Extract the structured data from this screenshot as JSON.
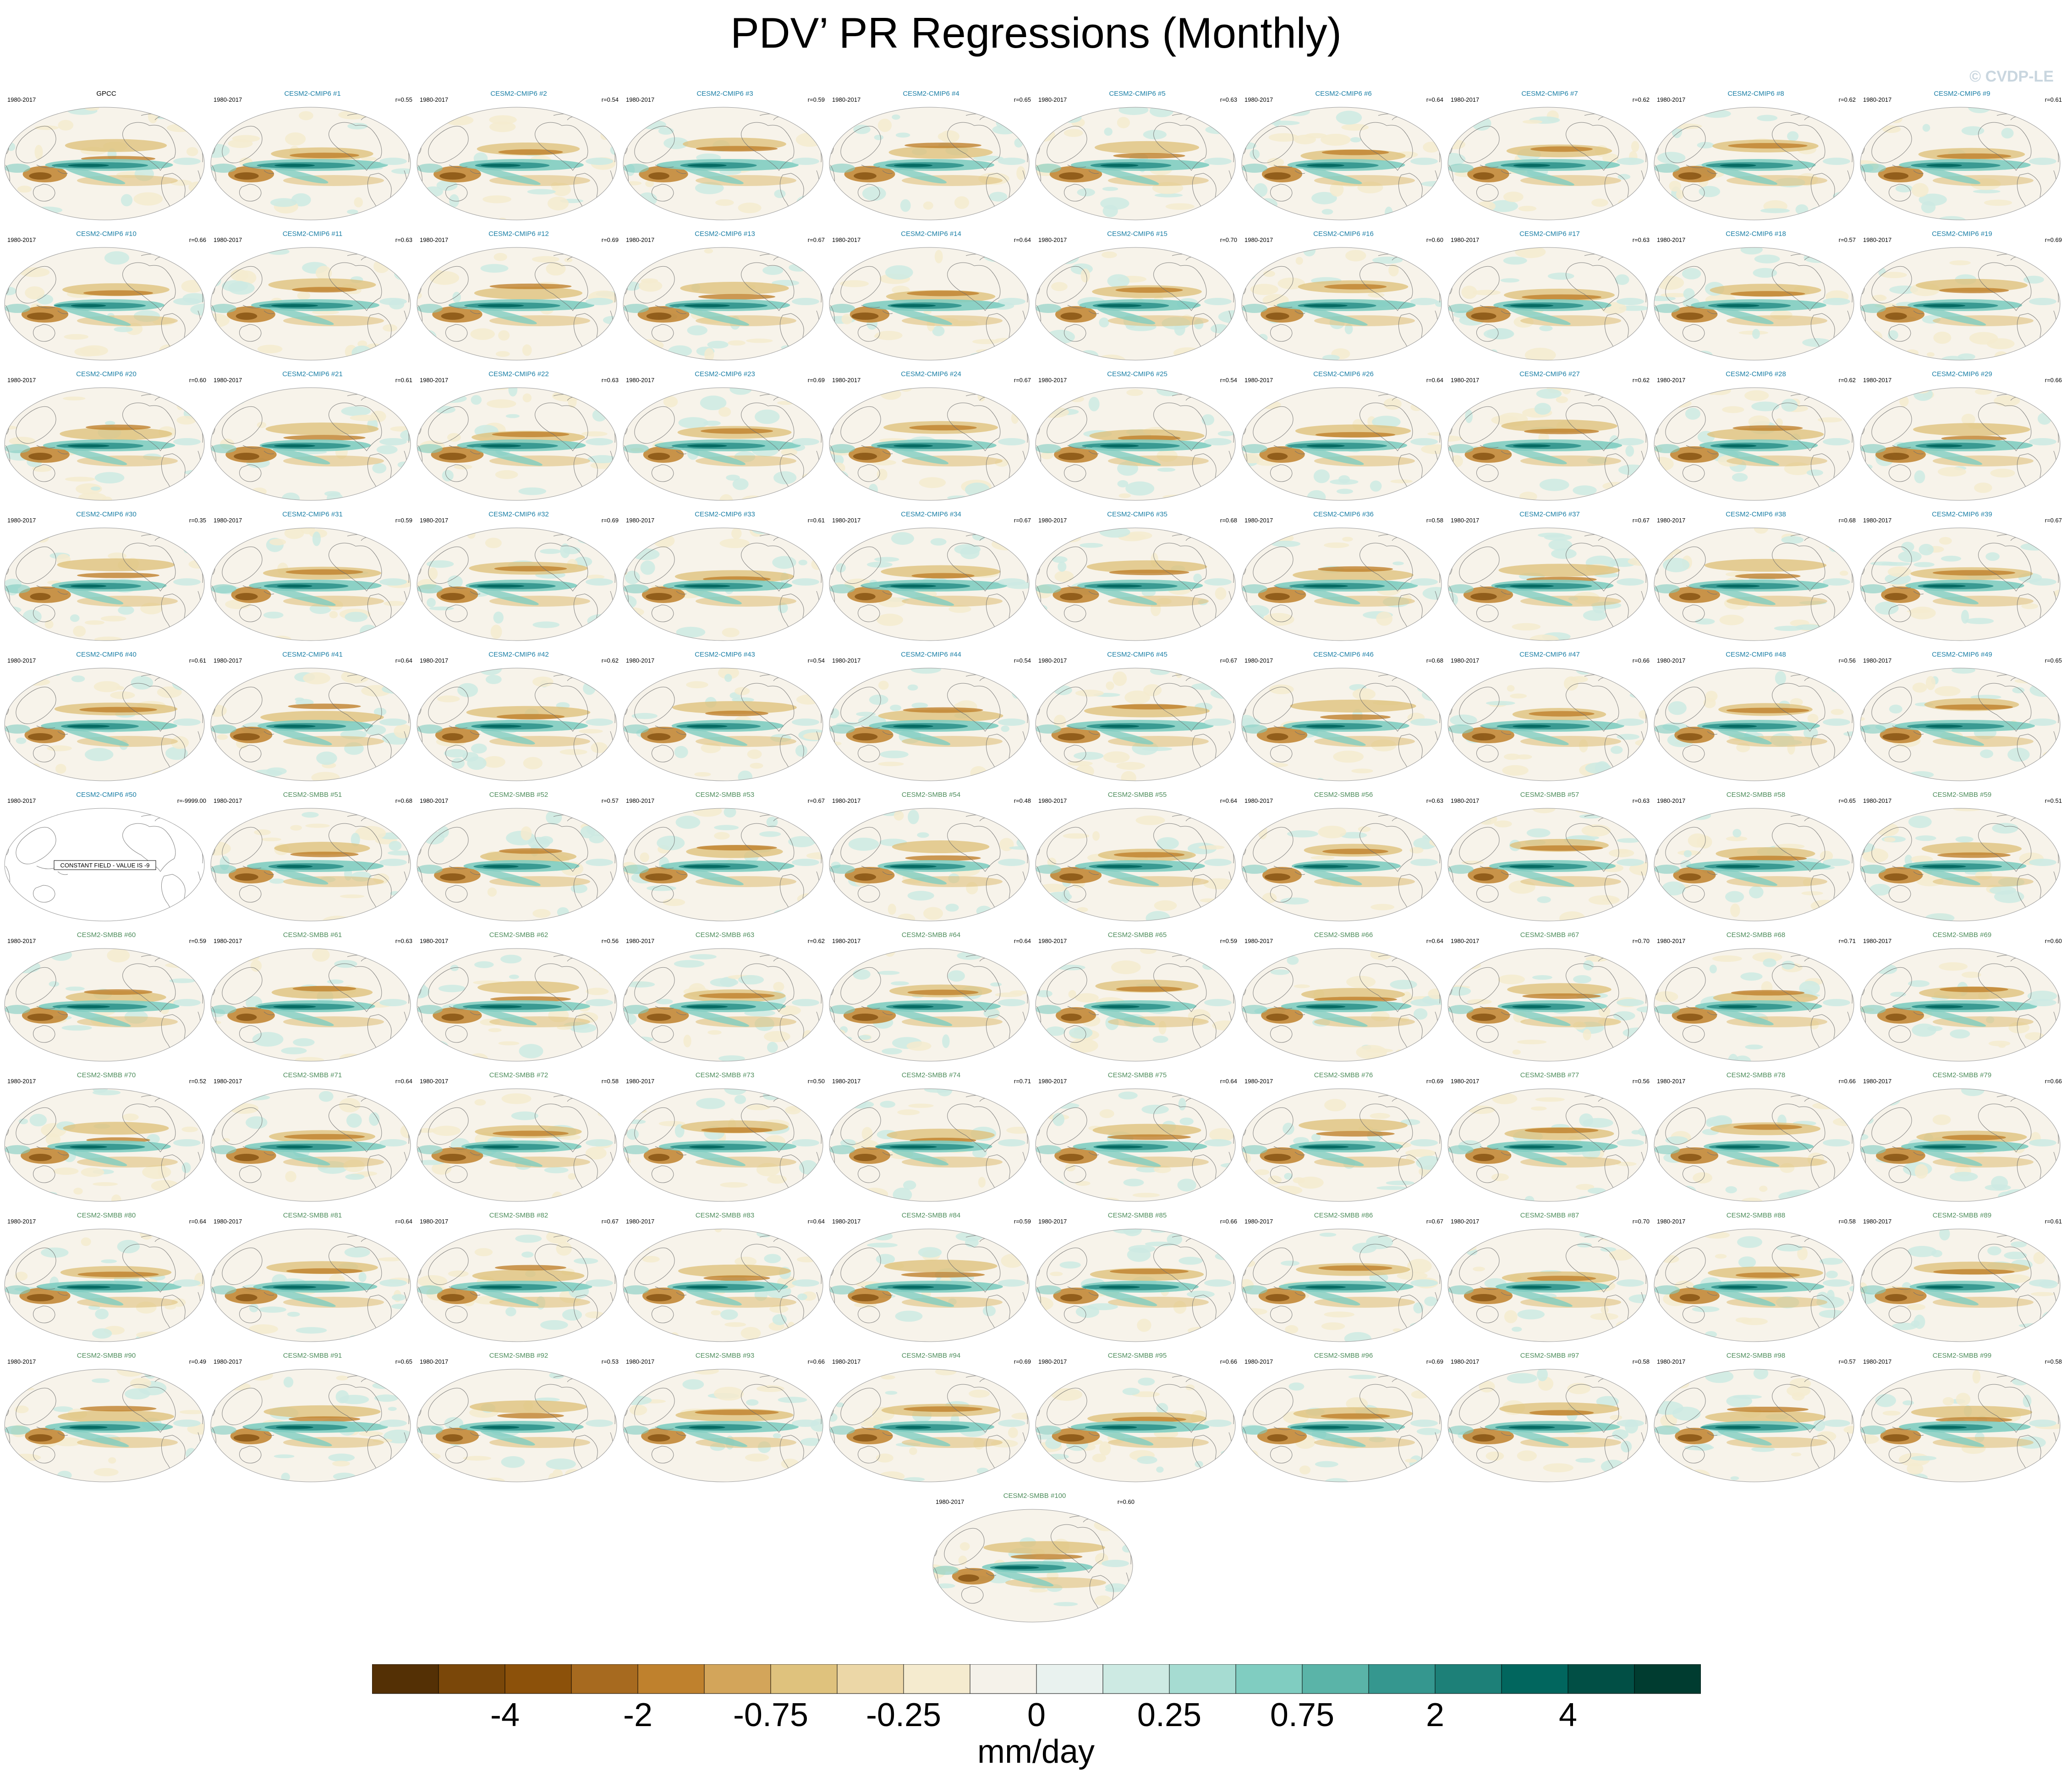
{
  "title": "PDV’ PR Regressions (Monthly)",
  "copyright": "© CVDP-LE",
  "period": "1980-2017",
  "constant_field_text": "CONSTANT FIELD - VALUE IS -9",
  "panels": [
    {
      "name": "GPCC",
      "r": "",
      "group": "obs"
    },
    {
      "name": "CESM2-CMIP6 #1",
      "r": "r=0.55",
      "group": "cmip6"
    },
    {
      "name": "CESM2-CMIP6 #2",
      "r": "r=0.54",
      "group": "cmip6"
    },
    {
      "name": "CESM2-CMIP6 #3",
      "r": "r=0.59",
      "group": "cmip6"
    },
    {
      "name": "CESM2-CMIP6 #4",
      "r": "r=0.65",
      "group": "cmip6"
    },
    {
      "name": "CESM2-CMIP6 #5",
      "r": "r=0.63",
      "group": "cmip6"
    },
    {
      "name": "CESM2-CMIP6 #6",
      "r": "r=0.64",
      "group": "cmip6"
    },
    {
      "name": "CESM2-CMIP6 #7",
      "r": "r=0.62",
      "group": "cmip6"
    },
    {
      "name": "CESM2-CMIP6 #8",
      "r": "r=0.62",
      "group": "cmip6"
    },
    {
      "name": "CESM2-CMIP6 #9",
      "r": "r=0.61",
      "group": "cmip6"
    },
    {
      "name": "CESM2-CMIP6 #10",
      "r": "r=0.66",
      "group": "cmip6"
    },
    {
      "name": "CESM2-CMIP6 #11",
      "r": "r=0.63",
      "group": "cmip6"
    },
    {
      "name": "CESM2-CMIP6 #12",
      "r": "r=0.69",
      "group": "cmip6"
    },
    {
      "name": "CESM2-CMIP6 #13",
      "r": "r=0.67",
      "group": "cmip6"
    },
    {
      "name": "CESM2-CMIP6 #14",
      "r": "r=0.64",
      "group": "cmip6"
    },
    {
      "name": "CESM2-CMIP6 #15",
      "r": "r=0.70",
      "group": "cmip6"
    },
    {
      "name": "CESM2-CMIP6 #16",
      "r": "r=0.60",
      "group": "cmip6"
    },
    {
      "name": "CESM2-CMIP6 #17",
      "r": "r=0.63",
      "group": "cmip6"
    },
    {
      "name": "CESM2-CMIP6 #18",
      "r": "r=0.57",
      "group": "cmip6"
    },
    {
      "name": "CESM2-CMIP6 #19",
      "r": "r=0.69",
      "group": "cmip6"
    },
    {
      "name": "CESM2-CMIP6 #20",
      "r": "r=0.60",
      "group": "cmip6"
    },
    {
      "name": "CESM2-CMIP6 #21",
      "r": "r=0.61",
      "group": "cmip6"
    },
    {
      "name": "CESM2-CMIP6 #22",
      "r": "r=0.63",
      "group": "cmip6"
    },
    {
      "name": "CESM2-CMIP6 #23",
      "r": "r=0.69",
      "group": "cmip6"
    },
    {
      "name": "CESM2-CMIP6 #24",
      "r": "r=0.67",
      "group": "cmip6"
    },
    {
      "name": "CESM2-CMIP6 #25",
      "r": "r=0.54",
      "group": "cmip6"
    },
    {
      "name": "CESM2-CMIP6 #26",
      "r": "r=0.64",
      "group": "cmip6"
    },
    {
      "name": "CESM2-CMIP6 #27",
      "r": "r=0.62",
      "group": "cmip6"
    },
    {
      "name": "CESM2-CMIP6 #28",
      "r": "r=0.62",
      "group": "cmip6"
    },
    {
      "name": "CESM2-CMIP6 #29",
      "r": "r=0.66",
      "group": "cmip6"
    },
    {
      "name": "CESM2-CMIP6 #30",
      "r": "r=0.35",
      "group": "cmip6"
    },
    {
      "name": "CESM2-CMIP6 #31",
      "r": "r=0.59",
      "group": "cmip6"
    },
    {
      "name": "CESM2-CMIP6 #32",
      "r": "r=0.69",
      "group": "cmip6"
    },
    {
      "name": "CESM2-CMIP6 #33",
      "r": "r=0.61",
      "group": "cmip6"
    },
    {
      "name": "CESM2-CMIP6 #34",
      "r": "r=0.67",
      "group": "cmip6"
    },
    {
      "name": "CESM2-CMIP6 #35",
      "r": "r=0.68",
      "group": "cmip6"
    },
    {
      "name": "CESM2-CMIP6 #36",
      "r": "r=0.58",
      "group": "cmip6"
    },
    {
      "name": "CESM2-CMIP6 #37",
      "r": "r=0.67",
      "group": "cmip6"
    },
    {
      "name": "CESM2-CMIP6 #38",
      "r": "r=0.68",
      "group": "cmip6"
    },
    {
      "name": "CESM2-CMIP6 #39",
      "r": "r=0.67",
      "group": "cmip6"
    },
    {
      "name": "CESM2-CMIP6 #40",
      "r": "r=0.61",
      "group": "cmip6"
    },
    {
      "name": "CESM2-CMIP6 #41",
      "r": "r=0.64",
      "group": "cmip6"
    },
    {
      "name": "CESM2-CMIP6 #42",
      "r": "r=0.62",
      "group": "cmip6"
    },
    {
      "name": "CESM2-CMIP6 #43",
      "r": "r=0.54",
      "group": "cmip6"
    },
    {
      "name": "CESM2-CMIP6 #44",
      "r": "r=0.54",
      "group": "cmip6"
    },
    {
      "name": "CESM2-CMIP6 #45",
      "r": "r=0.67",
      "group": "cmip6"
    },
    {
      "name": "CESM2-CMIP6 #46",
      "r": "r=0.68",
      "group": "cmip6"
    },
    {
      "name": "CESM2-CMIP6 #47",
      "r": "r=0.66",
      "group": "cmip6"
    },
    {
      "name": "CESM2-CMIP6 #48",
      "r": "r=0.56",
      "group": "cmip6"
    },
    {
      "name": "CESM2-CMIP6 #49",
      "r": "r=0.65",
      "group": "cmip6"
    },
    {
      "name": "CESM2-CMIP6 #50",
      "r": "r=-9999.00",
      "group": "cmip6",
      "constant": true
    },
    {
      "name": "CESM2-SMBB #51",
      "r": "r=0.68",
      "group": "smbb"
    },
    {
      "name": "CESM2-SMBB #52",
      "r": "r=0.57",
      "group": "smbb"
    },
    {
      "name": "CESM2-SMBB #53",
      "r": "r=0.67",
      "group": "smbb"
    },
    {
      "name": "CESM2-SMBB #54",
      "r": "r=0.48",
      "group": "smbb"
    },
    {
      "name": "CESM2-SMBB #55",
      "r": "r=0.64",
      "group": "smbb"
    },
    {
      "name": "CESM2-SMBB #56",
      "r": "r=0.63",
      "group": "smbb"
    },
    {
      "name": "CESM2-SMBB #57",
      "r": "r=0.63",
      "group": "smbb"
    },
    {
      "name": "CESM2-SMBB #58",
      "r": "r=0.65",
      "group": "smbb"
    },
    {
      "name": "CESM2-SMBB #59",
      "r": "r=0.51",
      "group": "smbb"
    },
    {
      "name": "CESM2-SMBB #60",
      "r": "r=0.59",
      "group": "smbb"
    },
    {
      "name": "CESM2-SMBB #61",
      "r": "r=0.63",
      "group": "smbb"
    },
    {
      "name": "CESM2-SMBB #62",
      "r": "r=0.56",
      "group": "smbb"
    },
    {
      "name": "CESM2-SMBB #63",
      "r": "r=0.62",
      "group": "smbb"
    },
    {
      "name": "CESM2-SMBB #64",
      "r": "r=0.64",
      "group": "smbb"
    },
    {
      "name": "CESM2-SMBB #65",
      "r": "r=0.59",
      "group": "smbb"
    },
    {
      "name": "CESM2-SMBB #66",
      "r": "r=0.64",
      "group": "smbb"
    },
    {
      "name": "CESM2-SMBB #67",
      "r": "r=0.70",
      "group": "smbb"
    },
    {
      "name": "CESM2-SMBB #68",
      "r": "r=0.71",
      "group": "smbb"
    },
    {
      "name": "CESM2-SMBB #69",
      "r": "r=0.60",
      "group": "smbb"
    },
    {
      "name": "CESM2-SMBB #70",
      "r": "r=0.52",
      "group": "smbb"
    },
    {
      "name": "CESM2-SMBB #71",
      "r": "r=0.64",
      "group": "smbb"
    },
    {
      "name": "CESM2-SMBB #72",
      "r": "r=0.58",
      "group": "smbb"
    },
    {
      "name": "CESM2-SMBB #73",
      "r": "r=0.50",
      "group": "smbb"
    },
    {
      "name": "CESM2-SMBB #74",
      "r": "r=0.71",
      "group": "smbb"
    },
    {
      "name": "CESM2-SMBB #75",
      "r": "r=0.64",
      "group": "smbb"
    },
    {
      "name": "CESM2-SMBB #76",
      "r": "r=0.69",
      "group": "smbb"
    },
    {
      "name": "CESM2-SMBB #77",
      "r": "r=0.56",
      "group": "smbb"
    },
    {
      "name": "CESM2-SMBB #78",
      "r": "r=0.66",
      "group": "smbb"
    },
    {
      "name": "CESM2-SMBB #79",
      "r": "r=0.66",
      "group": "smbb"
    },
    {
      "name": "CESM2-SMBB #80",
      "r": "r=0.64",
      "group": "smbb"
    },
    {
      "name": "CESM2-SMBB #81",
      "r": "r=0.64",
      "group": "smbb"
    },
    {
      "name": "CESM2-SMBB #82",
      "r": "r=0.67",
      "group": "smbb"
    },
    {
      "name": "CESM2-SMBB #83",
      "r": "r=0.64",
      "group": "smbb"
    },
    {
      "name": "CESM2-SMBB #84",
      "r": "r=0.59",
      "group": "smbb"
    },
    {
      "name": "CESM2-SMBB #85",
      "r": "r=0.66",
      "group": "smbb"
    },
    {
      "name": "CESM2-SMBB #86",
      "r": "r=0.67",
      "group": "smbb"
    },
    {
      "name": "CESM2-SMBB #87",
      "r": "r=0.70",
      "group": "smbb"
    },
    {
      "name": "CESM2-SMBB #88",
      "r": "r=0.58",
      "group": "smbb"
    },
    {
      "name": "CESM2-SMBB #89",
      "r": "r=0.61",
      "group": "smbb"
    },
    {
      "name": "CESM2-SMBB #90",
      "r": "r=0.49",
      "group": "smbb"
    },
    {
      "name": "CESM2-SMBB #91",
      "r": "r=0.65",
      "group": "smbb"
    },
    {
      "name": "CESM2-SMBB #92",
      "r": "r=0.53",
      "group": "smbb"
    },
    {
      "name": "CESM2-SMBB #93",
      "r": "r=0.66",
      "group": "smbb"
    },
    {
      "name": "CESM2-SMBB #94",
      "r": "r=0.69",
      "group": "smbb"
    },
    {
      "name": "CESM2-SMBB #95",
      "r": "r=0.66",
      "group": "smbb"
    },
    {
      "name": "CESM2-SMBB #96",
      "r": "r=0.69",
      "group": "smbb"
    },
    {
      "name": "CESM2-SMBB #97",
      "r": "r=0.58",
      "group": "smbb"
    },
    {
      "name": "CESM2-SMBB #98",
      "r": "r=0.57",
      "group": "smbb"
    },
    {
      "name": "CESM2-SMBB #99",
      "r": "r=0.58",
      "group": "smbb"
    },
    {
      "name": "CESM2-SMBB #100",
      "r": "r=0.60",
      "group": "smbb"
    }
  ],
  "colorbar": {
    "units": "mm/day",
    "colors": [
      "#543005",
      "#7a4709",
      "#8c510a",
      "#a76a1f",
      "#bf812d",
      "#d3a55a",
      "#dfc27d",
      "#ecd7a7",
      "#f5ebcf",
      "#f5f2ea",
      "#e9f2ef",
      "#cdeae3",
      "#a6dcd2",
      "#80cdc1",
      "#5ab4a8",
      "#35978f",
      "#1d8078",
      "#01665e",
      "#014f45",
      "#003c30"
    ],
    "tick_labels": [
      {
        "label": "-4",
        "boundary": 2
      },
      {
        "label": "-2",
        "boundary": 4
      },
      {
        "label": "-0.75",
        "boundary": 6
      },
      {
        "label": "-0.25",
        "boundary": 8
      },
      {
        "label": "0",
        "boundary": 10
      },
      {
        "label": "0.25",
        "boundary": 12
      },
      {
        "label": "0.75",
        "boundary": 14
      },
      {
        "label": "2",
        "boundary": 16
      },
      {
        "label": "4",
        "boundary": 18
      }
    ]
  }
}
